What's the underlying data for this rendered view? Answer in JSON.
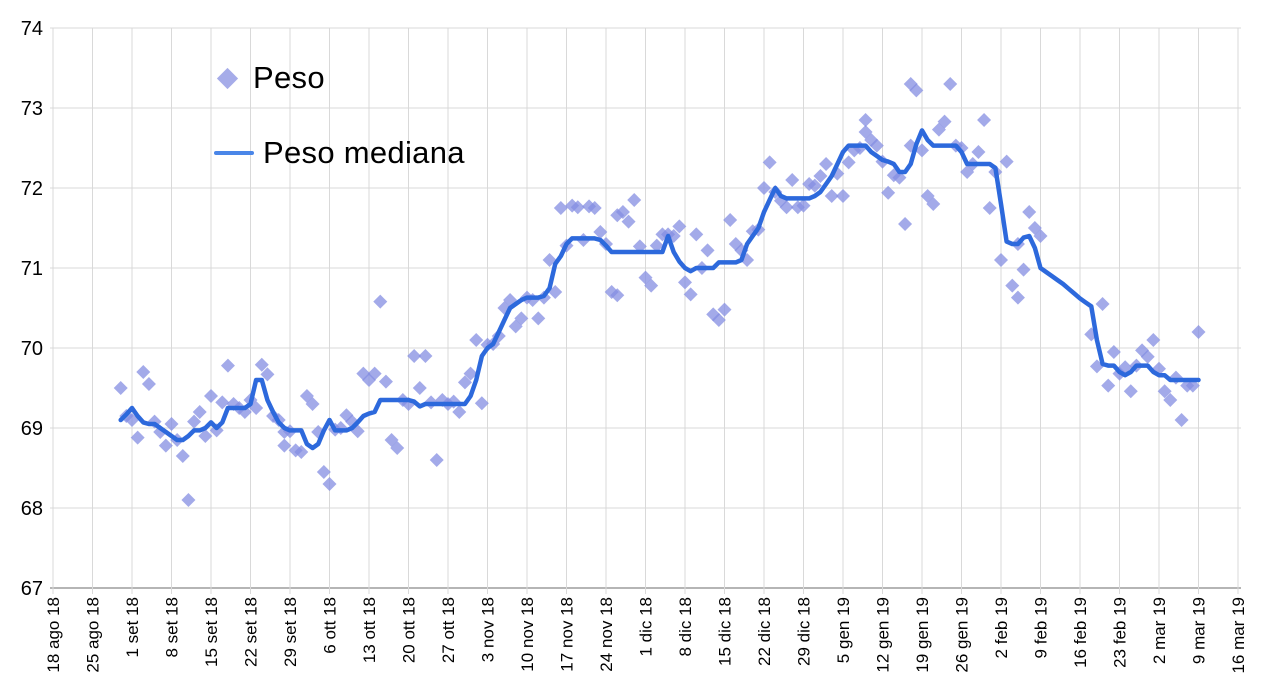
{
  "legend": {
    "peso": "Peso",
    "mediana": "Peso mediana"
  },
  "colors": {
    "scatter_apparent": "#a6ace9",
    "scatter_base": "#848ee2",
    "scatter_opacity": 0.75,
    "line": "#2d69dc",
    "legend_line_swatch": "#4a86e8",
    "grid": "#d9d9d9",
    "axis": "#b5b5b5",
    "text": "#000000",
    "background": "#ffffff"
  },
  "chart_data": {
    "type": "scatter",
    "title": "",
    "xlabel": "",
    "ylabel": "",
    "grid": true,
    "legend_position": "top-left-inside",
    "x_axis": {
      "frequency_of_points": "daily",
      "tick_labels": [
        "18 ago 18",
        "25 ago 18",
        "1 set 18",
        "8 set 18",
        "15 set 18",
        "22 set 18",
        "29 set 18",
        "6 ott 18",
        "13 ott 18",
        "20 ott 18",
        "27 ott 18",
        "3 nov 18",
        "10 nov 18",
        "17 nov 18",
        "24 nov 18",
        "1 dic 18",
        "8 dic 18",
        "15 dic 18",
        "22 dic 18",
        "29 dic 18",
        "5 gen 19",
        "12 gen 19",
        "19 gen 19",
        "26 gen 19",
        "2 feb 19",
        "9 feb 19",
        "16 feb 19",
        "23 feb 19",
        "2 mar 19",
        "9 mar 19",
        "16 mar 19"
      ],
      "days_between_gridlines": 7,
      "data_start_day_offset_from_first_gridline": 12
    },
    "y_axis": {
      "min": 67,
      "max": 74,
      "tick_labels": [
        74,
        73,
        72,
        71,
        70,
        69,
        68,
        67
      ]
    },
    "series": [
      {
        "name": "Peso",
        "type": "scatter",
        "marker": "diamond",
        "values": [
          69.5,
          69.15,
          69.1,
          68.88,
          69.7,
          69.55,
          69.08,
          68.95,
          68.78,
          69.05,
          68.85,
          68.65,
          68.1,
          69.08,
          69.2,
          68.9,
          69.4,
          68.97,
          69.32,
          69.78,
          69.3,
          69.25,
          69.2,
          69.35,
          69.25,
          69.79,
          69.67,
          69.15,
          69.1,
          68.78,
          68.96,
          68.72,
          68.7,
          69.4,
          69.3,
          68.95,
          68.45,
          68.3,
          68.98,
          69.0,
          69.16,
          69.08,
          68.96,
          69.68,
          69.6,
          69.68,
          70.58,
          69.58,
          68.85,
          68.75,
          69.35,
          69.3,
          69.9,
          69.5,
          69.9,
          69.32,
          68.6,
          69.35,
          69.3,
          69.33,
          69.2,
          69.57,
          69.68,
          70.1,
          69.31,
          70.04,
          70.05,
          70.15,
          70.5,
          70.6,
          70.27,
          70.37,
          70.63,
          70.6,
          70.37,
          70.63,
          71.1,
          70.7,
          71.75,
          71.28,
          71.78,
          71.76,
          71.35,
          71.77,
          71.75,
          71.45,
          71.3,
          70.7,
          70.66,
          71.7,
          71.58,
          71.85,
          71.27,
          70.88,
          70.78,
          71.28,
          71.42,
          71.42,
          71.4,
          71.52,
          70.82,
          70.67,
          71.42,
          71.0,
          71.22,
          70.42,
          70.35,
          70.48,
          71.6,
          71.3,
          71.22,
          71.1,
          71.46,
          71.48,
          72.0,
          72.32,
          71.95,
          71.84,
          71.76,
          72.1,
          71.76,
          71.78,
          72.05,
          72.03,
          72.15,
          72.3,
          71.9,
          72.18,
          71.9,
          72.32,
          72.47,
          72.5,
          72.85,
          72.6,
          72.53,
          72.33,
          71.94,
          72.16,
          72.13,
          71.55,
          73.3,
          73.22,
          72.47,
          71.9,
          71.8,
          72.73,
          72.83,
          73.3,
          72.53,
          72.5,
          72.2,
          72.3,
          72.45,
          72.85,
          71.75,
          72.2,
          71.1,
          72.33,
          70.78,
          70.63,
          70.98,
          71.7,
          71.5,
          71.4,
          null,
          null,
          null,
          null,
          null,
          null,
          null,
          null,
          70.17,
          69.77,
          70.55,
          69.53,
          69.95,
          69.68,
          69.76,
          69.46,
          69.78,
          69.97,
          69.89,
          70.1,
          69.74,
          69.46,
          69.35,
          69.63,
          69.1,
          69.53,
          69.53,
          70.2
        ]
      },
      {
        "name": "Peso mediana",
        "type": "line",
        "values": [
          69.1,
          69.17,
          69.25,
          69.15,
          69.07,
          69.05,
          69.05,
          69.0,
          68.95,
          68.9,
          68.85,
          68.85,
          68.9,
          68.97,
          68.97,
          69.0,
          69.07,
          69.0,
          69.07,
          69.25,
          69.25,
          69.25,
          69.25,
          69.3,
          69.6,
          69.6,
          69.35,
          69.2,
          69.07,
          69.0,
          68.97,
          68.97,
          68.97,
          68.8,
          68.75,
          68.8,
          68.97,
          69.1,
          68.97,
          68.97,
          68.97,
          69.0,
          69.07,
          69.15,
          69.18,
          69.2,
          69.35,
          69.35,
          69.35,
          69.35,
          69.35,
          69.35,
          69.33,
          69.27,
          69.3,
          69.3,
          69.3,
          69.3,
          69.3,
          69.3,
          69.3,
          69.3,
          69.4,
          69.6,
          69.9,
          70.0,
          70.05,
          70.2,
          70.35,
          70.5,
          70.55,
          70.6,
          70.63,
          70.63,
          70.63,
          70.65,
          70.75,
          71.05,
          71.15,
          71.3,
          71.37,
          71.37,
          71.37,
          71.37,
          71.37,
          71.35,
          71.28,
          71.2,
          71.2,
          71.2,
          71.2,
          71.2,
          71.2,
          71.2,
          71.2,
          71.2,
          71.2,
          71.4,
          71.2,
          71.08,
          71.0,
          70.96,
          71.0,
          71.0,
          71.0,
          71.0,
          71.07,
          71.07,
          71.07,
          71.07,
          71.1,
          71.3,
          71.4,
          71.5,
          71.7,
          71.85,
          72.0,
          71.9,
          71.87,
          71.87,
          71.87,
          71.87,
          71.87,
          71.9,
          71.95,
          72.05,
          72.15,
          72.3,
          72.45,
          72.53,
          72.53,
          72.53,
          72.53,
          72.45,
          72.4,
          72.35,
          72.33,
          72.3,
          72.2,
          72.2,
          72.3,
          72.55,
          72.72,
          72.6,
          72.53,
          72.53,
          72.53,
          72.53,
          72.53,
          72.45,
          72.3,
          72.3,
          72.3,
          72.3,
          72.3,
          72.25,
          71.8,
          71.33,
          71.3,
          71.3,
          71.38,
          71.4,
          71.25,
          71.0,
          70.95,
          70.9,
          70.85,
          70.8,
          70.74,
          70.68,
          70.62,
          70.57,
          70.52,
          70.1,
          69.8,
          69.78,
          69.78,
          69.7,
          69.66,
          69.7,
          69.78,
          69.78,
          69.78,
          69.7,
          69.66,
          69.66,
          69.6,
          69.6,
          69.6,
          69.6,
          69.6,
          69.6
        ]
      }
    ],
    "extra_scatter_points": [
      {
        "index": 29,
        "value": 68.95
      },
      {
        "index": 88,
        "value": 71.66
      },
      {
        "index": 132,
        "value": 72.7
      },
      {
        "index": 140,
        "value": 72.53
      },
      {
        "index": 159,
        "value": 71.3
      }
    ]
  }
}
